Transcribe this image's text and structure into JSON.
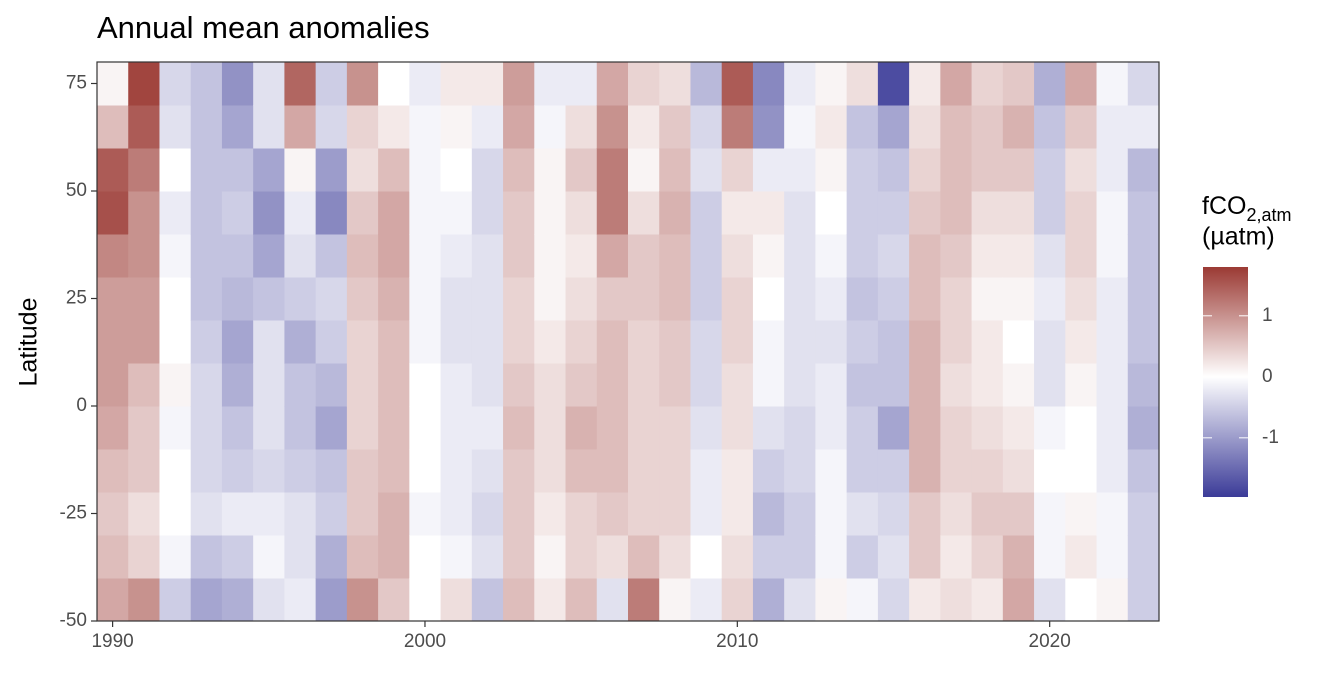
{
  "chart_data": {
    "type": "heatmap",
    "title": "Annual mean anomalies",
    "y_label": "Latitude",
    "legend_title": {
      "main": "fCO",
      "sub": "2,atm",
      "unit": "(µatm)"
    },
    "x": [
      1990,
      1991,
      1992,
      1993,
      1994,
      1995,
      1996,
      1997,
      1998,
      1999,
      2000,
      2001,
      2002,
      2003,
      2004,
      2005,
      2006,
      2007,
      2008,
      2009,
      2010,
      2011,
      2012,
      2013,
      2014,
      2015,
      2016,
      2017,
      2018,
      2019,
      2020,
      2021,
      2022,
      2023
    ],
    "y": [
      -45,
      -35,
      -25,
      -15,
      -5,
      5,
      15,
      25,
      35,
      45,
      55,
      65,
      75
    ],
    "values": [
      [
        0.8,
        0.6,
        0.5,
        0.6,
        0.8,
        0.9,
        0.9,
        0.9,
        1.1,
        1.6,
        1.5,
        0.6,
        0.1
      ],
      [
        1.0,
        0.4,
        0.3,
        0.5,
        0.5,
        0.6,
        0.9,
        0.9,
        1.0,
        1.0,
        1.2,
        1.5,
        1.7
      ],
      [
        -0.5,
        -0.1,
        0,
        0,
        -0.1,
        0.1,
        0,
        0,
        -0.1,
        -0.2,
        0,
        -0.3,
        -0.4
      ],
      [
        -0.9,
        -0.6,
        -0.3,
        -0.4,
        -0.4,
        -0.4,
        -0.5,
        -0.6,
        -0.6,
        -0.6,
        -0.6,
        -0.6,
        -0.6
      ],
      [
        -0.8,
        -0.5,
        -0.2,
        -0.5,
        -0.6,
        -0.8,
        -0.9,
        -0.7,
        -0.6,
        -0.5,
        -0.6,
        -0.9,
        -1.1
      ],
      [
        -0.3,
        -0.1,
        -0.2,
        -0.4,
        -0.3,
        -0.3,
        -0.3,
        -0.6,
        -0.9,
        -1.1,
        -0.9,
        -0.3,
        -0.3
      ],
      [
        -0.2,
        -0.3,
        -0.3,
        -0.5,
        -0.6,
        -0.6,
        -0.8,
        -0.5,
        -0.3,
        -0.2,
        0.1,
        0.8,
        1.4
      ],
      [
        -1.0,
        -0.8,
        -0.5,
        -0.6,
        -0.9,
        -0.7,
        -0.5,
        -0.4,
        -0.6,
        -1.2,
        -1.0,
        -0.4,
        -0.5
      ],
      [
        1.0,
        0.6,
        0.5,
        0.5,
        0.4,
        0.4,
        0.4,
        0.5,
        0.6,
        0.5,
        0.3,
        0.4,
        1.0
      ],
      [
        0.5,
        0.7,
        0.7,
        0.6,
        0.6,
        0.6,
        0.6,
        0.7,
        0.8,
        0.8,
        0.6,
        0.2,
        0
      ],
      [
        0,
        0,
        -0.1,
        0,
        0,
        0,
        -0.1,
        -0.1,
        -0.1,
        -0.1,
        -0.1,
        -0.1,
        -0.2
      ],
      [
        0.3,
        -0.1,
        -0.2,
        -0.2,
        -0.2,
        -0.2,
        -0.3,
        -0.3,
        -0.2,
        -0.1,
        0,
        0.1,
        0.2
      ],
      [
        -0.6,
        -0.3,
        -0.4,
        -0.3,
        -0.2,
        -0.3,
        -0.3,
        -0.3,
        -0.3,
        -0.4,
        -0.4,
        -0.2,
        0.2
      ],
      [
        0.6,
        0.5,
        0.5,
        0.5,
        0.6,
        0.5,
        0.4,
        0.4,
        0.5,
        0.5,
        0.6,
        0.8,
        0.9
      ],
      [
        0.2,
        0.1,
        0.2,
        0.3,
        0.3,
        0.3,
        0.2,
        0.1,
        0.1,
        0.1,
        0.1,
        -0.1,
        -0.2
      ],
      [
        0.6,
        0.4,
        0.4,
        0.6,
        0.7,
        0.5,
        0.4,
        0.3,
        0.2,
        0.3,
        0.5,
        0.3,
        -0.2
      ],
      [
        -0.3,
        0.3,
        0.5,
        0.6,
        0.6,
        0.6,
        0.6,
        0.5,
        0.8,
        1.2,
        1.2,
        1.0,
        0.8
      ],
      [
        1.2,
        0.6,
        0.4,
        0.4,
        0.4,
        0.4,
        0.4,
        0.5,
        0.5,
        0.3,
        0.1,
        0.2,
        0.4
      ],
      [
        0.1,
        0.3,
        0.4,
        0.4,
        0.4,
        0.5,
        0.5,
        0.6,
        0.6,
        0.7,
        0.6,
        0.5,
        0.3
      ],
      [
        -0.2,
        0,
        -0.2,
        -0.2,
        -0.3,
        -0.4,
        -0.4,
        -0.5,
        -0.5,
        -0.5,
        -0.3,
        -0.4,
        -0.7
      ],
      [
        0.4,
        0.3,
        0.2,
        0.2,
        0.3,
        0.3,
        0.4,
        0.4,
        0.3,
        0.2,
        0.4,
        1.2,
        1.5
      ],
      [
        -0.8,
        -0.5,
        -0.7,
        -0.5,
        -0.3,
        -0.1,
        -0.1,
        0,
        0.1,
        0.2,
        -0.2,
        -1.1,
        -1.2
      ],
      [
        -0.3,
        -0.5,
        -0.5,
        -0.4,
        -0.4,
        -0.3,
        -0.3,
        -0.3,
        -0.3,
        -0.3,
        -0.2,
        -0.1,
        -0.2
      ],
      [
        0.1,
        -0.1,
        -0.1,
        -0.1,
        -0.2,
        -0.2,
        -0.3,
        -0.2,
        -0.1,
        0,
        0.1,
        0.2,
        0.1
      ],
      [
        -0.1,
        -0.5,
        -0.3,
        -0.5,
        -0.5,
        -0.6,
        -0.5,
        -0.6,
        -0.5,
        -0.5,
        -0.5,
        -0.6,
        0.3
      ],
      [
        -0.4,
        -0.3,
        -0.4,
        -0.5,
        -0.9,
        -0.6,
        -0.6,
        -0.5,
        -0.4,
        -0.5,
        -0.6,
        -0.9,
        -1.8
      ],
      [
        0.2,
        0.5,
        0.5,
        0.7,
        0.7,
        0.7,
        0.7,
        0.6,
        0.6,
        0.5,
        0.4,
        0.3,
        0.2
      ],
      [
        0.3,
        0.2,
        0.3,
        0.4,
        0.4,
        0.3,
        0.4,
        0.4,
        0.5,
        0.6,
        0.6,
        0.6,
        0.8
      ],
      [
        0.2,
        0.4,
        0.5,
        0.4,
        0.3,
        0.2,
        0.2,
        0.1,
        0.2,
        0.3,
        0.5,
        0.5,
        0.4
      ],
      [
        0.8,
        0.7,
        0.5,
        0.3,
        0.2,
        0.1,
        0,
        0.1,
        0.2,
        0.3,
        0.5,
        0.7,
        0.5
      ],
      [
        -0.3,
        -0.1,
        -0.1,
        0,
        -0.1,
        -0.3,
        -0.3,
        -0.2,
        -0.3,
        -0.5,
        -0.5,
        -0.6,
        -0.8
      ],
      [
        0,
        0.2,
        0.1,
        0,
        0,
        0.1,
        0.2,
        0.3,
        0.4,
        0.4,
        0.3,
        0.5,
        0.8
      ],
      [
        0.1,
        -0.1,
        -0.1,
        -0.2,
        -0.2,
        -0.2,
        -0.2,
        -0.2,
        -0.1,
        -0.1,
        -0.2,
        -0.2,
        -0.1
      ],
      [
        -0.5,
        -0.5,
        -0.5,
        -0.6,
        -0.8,
        -0.7,
        -0.6,
        -0.6,
        -0.6,
        -0.6,
        -0.7,
        -0.2,
        -0.4
      ]
    ],
    "xlim": [
      1989.5,
      2023.5
    ],
    "xticks": [
      1990,
      2000,
      2010,
      2020
    ],
    "ylim": [
      -50,
      80
    ],
    "yticks": [
      -50,
      -25,
      0,
      25,
      50,
      75
    ],
    "colorlim": [
      -1.97,
      1.8
    ],
    "colorticks": [
      -1,
      0,
      1
    ],
    "colors": {
      "low": "#3b3b98",
      "mid": "#ffffff",
      "high": "#9b3a34"
    }
  }
}
